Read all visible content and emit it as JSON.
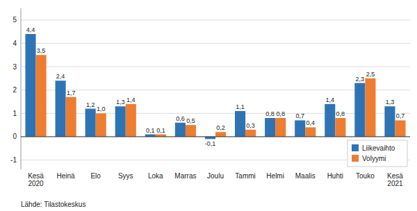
{
  "chart_data": {
    "type": "bar",
    "categories": [
      "Kesä\n2020",
      "Heinä",
      "Elo",
      "Syys",
      "Loka",
      "Marras",
      "Joulu",
      "Tammi",
      "Helmi",
      "Maalis",
      "Huhti",
      "Touko",
      "Kesä\n2021"
    ],
    "series": [
      {
        "name": "Liikevaihto",
        "color": "#2E74B5",
        "values": [
          4.4,
          2.4,
          1.2,
          1.3,
          0.1,
          0.6,
          -0.1,
          1.1,
          0.8,
          0.7,
          1.4,
          2.3,
          1.3
        ],
        "value_labels": [
          "4,4",
          "2,4",
          "1,2",
          "1,3",
          "0,1",
          "0,6",
          "-0,1",
          "1,1",
          "0,8",
          "0,7",
          "1,4",
          "2,3",
          "1,3"
        ]
      },
      {
        "name": "Volyymi",
        "color": "#ED7D31",
        "values": [
          3.5,
          1.7,
          1.0,
          1.4,
          0.1,
          0.5,
          0.2,
          0.3,
          0.8,
          0.4,
          0.8,
          2.5,
          0.7
        ],
        "value_labels": [
          "3,5",
          "1,7",
          "1,0",
          "1,4",
          "0,1",
          "0,5",
          "0,2",
          "0,3",
          "0,8",
          "0,4",
          "0,8",
          "2,5",
          "0,7"
        ]
      }
    ],
    "ylim": [
      -1.4,
      5.5
    ],
    "yticks": [
      -1,
      0,
      1,
      2,
      3,
      4,
      5
    ],
    "grid": true,
    "legend": "lower right",
    "data_labels": true,
    "annotations": [
      "Lähde: Tilastokeskus"
    ]
  }
}
